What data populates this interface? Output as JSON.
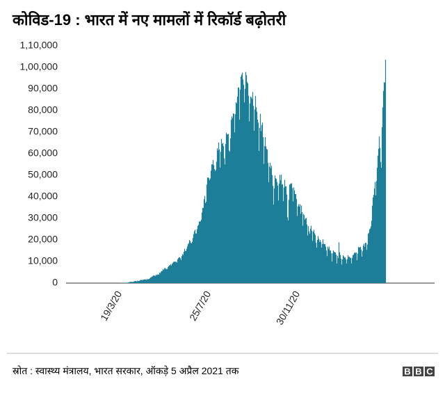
{
  "chart_data": {
    "type": "bar",
    "title": "कोविड-19 : भारत में नए मामलों में रिकॉर्ड बढ़ोतरी",
    "source": "स्रोत : स्वास्थ्य मंत्रालय, भारत सरकार, ऑकड़े 5 अप्रैल 2021 तक",
    "logo": [
      "B",
      "B",
      "C"
    ],
    "color": "#1c7e99",
    "ylim": [
      0,
      110000
    ],
    "yticks": [
      0,
      {
        "value": 10000,
        "label": "10,000"
      },
      {
        "value": 20000,
        "label": "20,000"
      },
      {
        "value": 30000,
        "label": "30,000"
      },
      {
        "value": 40000,
        "label": "40,000"
      },
      {
        "value": 50000,
        "label": "50,000"
      },
      {
        "value": 60000,
        "label": "60,000"
      },
      {
        "value": 70000,
        "label": "70,000"
      },
      {
        "value": 80000,
        "label": "80,000"
      },
      {
        "value": 90000,
        "label": "90,000"
      },
      {
        "value": 100000,
        "label": "1,00,000"
      },
      {
        "value": 110000,
        "label": "1,10,000"
      }
    ],
    "categories": [
      null,
      null,
      null,
      null,
      null,
      null,
      null,
      null,
      null,
      null,
      null,
      null,
      null,
      null,
      null,
      null,
      null,
      null,
      null,
      null,
      null,
      null,
      null,
      null,
      null,
      null,
      null,
      null,
      null,
      null,
      null,
      null,
      null,
      null,
      null,
      null,
      null,
      null,
      null,
      null,
      null,
      null,
      null,
      null,
      null,
      null,
      null,
      null,
      null,
      "19/3/20",
      null,
      null,
      null,
      null,
      null,
      null,
      null,
      null,
      null,
      null,
      null,
      null,
      null,
      null,
      null,
      null,
      null,
      null,
      null,
      null,
      null,
      null,
      null,
      null,
      null,
      null,
      null,
      null,
      null,
      null,
      null,
      null,
      null,
      null,
      null,
      null,
      null,
      null,
      null,
      null,
      null,
      null,
      null,
      null,
      null,
      null,
      null,
      null,
      null,
      null,
      null,
      null,
      null,
      null,
      null,
      null,
      null,
      null,
      null,
      null,
      null,
      null,
      null,
      null,
      null,
      null,
      null,
      null,
      null,
      null,
      null,
      null,
      null,
      null,
      null,
      null,
      null,
      null,
      null,
      null,
      null,
      null,
      null,
      null,
      null,
      null,
      null,
      null,
      null,
      null,
      null,
      null,
      null,
      null,
      null,
      null,
      null,
      null,
      null,
      null,
      null,
      null,
      null,
      null,
      null,
      null,
      null,
      null,
      null,
      null,
      null,
      null,
      null,
      null,
      null,
      null,
      null,
      null,
      null,
      null,
      null,
      null,
      null,
      null,
      null,
      null,
      null,
      "25/7/20",
      null,
      null,
      null,
      null,
      null,
      null,
      null,
      null,
      null,
      null,
      null,
      null,
      null,
      null,
      null,
      null,
      null,
      null,
      null,
      null,
      null,
      null,
      null,
      null,
      null,
      null,
      null,
      null,
      null,
      null,
      null,
      null,
      null,
      null,
      null,
      null,
      null,
      null,
      null,
      null,
      null,
      null,
      null,
      null,
      null,
      null,
      null,
      null,
      null,
      null,
      null,
      null,
      null,
      null,
      null,
      null,
      null,
      null,
      null,
      null,
      null,
      null,
      null,
      null,
      null,
      null,
      null,
      null,
      null,
      null,
      null,
      null,
      null,
      null,
      null,
      null,
      null,
      null,
      null,
      null,
      null,
      null,
      null,
      null,
      null,
      null,
      null,
      null,
      null,
      null,
      null,
      null,
      null,
      null,
      null,
      null,
      null,
      null,
      null,
      null,
      null,
      null,
      null,
      null,
      null,
      null,
      null,
      null,
      null,
      null,
      null,
      null,
      null,
      null,
      null,
      null,
      null,
      null,
      null,
      null,
      null,
      null,
      null,
      null,
      null,
      null,
      null,
      "30/11/20",
      null,
      null,
      null,
      null,
      null,
      null,
      null,
      null,
      null,
      null,
      null,
      null,
      null,
      null,
      null,
      null,
      null,
      null,
      null,
      null,
      null,
      null,
      null,
      null,
      null,
      null,
      null,
      null,
      null,
      null,
      null,
      null,
      null,
      null,
      null,
      null,
      null,
      null,
      null,
      null,
      null,
      null,
      null,
      null,
      null,
      null,
      null,
      null,
      null,
      null,
      null,
      null,
      null,
      null,
      null,
      null,
      null,
      null,
      null,
      null,
      null,
      null,
      null,
      null,
      null,
      null,
      null,
      null,
      null,
      null,
      null,
      null,
      null,
      null,
      null,
      null,
      null,
      null,
      null,
      null,
      null,
      null,
      null,
      null,
      null,
      null,
      null,
      null,
      null,
      null,
      null,
      null,
      null,
      null,
      null,
      null,
      null,
      null,
      null,
      null,
      null,
      null,
      null,
      null,
      null,
      null,
      null,
      null,
      null,
      null,
      null,
      null,
      null,
      null,
      null,
      null,
      null,
      null,
      null,
      null,
      null,
      null,
      null,
      null,
      null,
      null
    ],
    "values": [
      1,
      0,
      0,
      0,
      0,
      0,
      0,
      0,
      0,
      0,
      0,
      0,
      0,
      0,
      0,
      0,
      0,
      0,
      0,
      0,
      0,
      0,
      0,
      0,
      0,
      0,
      0,
      0,
      0,
      0,
      0,
      0,
      2,
      1,
      22,
      2,
      1,
      3,
      5,
      9,
      12,
      11,
      7,
      3,
      13,
      14,
      1,
      13,
      28,
      25,
      50,
      80,
      90,
      75,
      100,
      80,
      90,
      120,
      160,
      150,
      210,
      230,
      380,
      430,
      650,
      520,
      560,
      610,
      500,
      700,
      900,
      1000,
      900,
      800,
      1100,
      900,
      1000,
      1050,
      1300,
      1500,
      1400,
      1500,
      1300,
      1700,
      1600,
      1800,
      1600,
      1500,
      1900,
      1700,
      1800,
      1900,
      2200,
      2600,
      2700,
      3000,
      3100,
      3500,
      3600,
      3400,
      3300,
      3900,
      3600,
      4000,
      4000,
      3900,
      4900,
      4500,
      5200,
      5600,
      5700,
      6500,
      6100,
      6800,
      7100,
      6500,
      6600,
      6500,
      7300,
      7800,
      8200,
      8300,
      8800,
      8100,
      8900,
      9300,
      9800,
      9900,
      10000,
      9800,
      9900,
      9500,
      11000,
      11500,
      12000,
      11900,
      11500,
      10700,
      12500,
      13500,
      13000,
      14500,
      15900,
      15000,
      14800,
      15900,
      17000,
      18000,
      18500,
      20000,
      19500,
      18600,
      18500,
      19100,
      20900,
      22700,
      24000,
      24800,
      23000,
      23000,
      25000,
      26500,
      27000,
      28600,
      28500,
      28700,
      29400,
      32700,
      34900,
      34800,
      38900,
      40400,
      37100,
      37700,
      45700,
      48900,
      49000,
      48600,
      47700,
      48500,
      52100,
      55100,
      55000,
      57100,
      54700,
      52900,
      52000,
      52500,
      56300,
      62500,
      61500,
      65200,
      62000,
      53600,
      60900,
      66900,
      64500,
      65000,
      63500,
      57900,
      55000,
      64500,
      69700,
      69000,
      68900,
      69200,
      61400,
      60900,
      67100,
      75700,
      77300,
      76500,
      78700,
      78500,
      69900,
      78300,
      83900,
      83300,
      86400,
      90600,
      90800,
      75800,
      89700,
      95700,
      96600,
      97600,
      94400,
      92000,
      83800,
      90100,
      97900,
      96400,
      93300,
      92600,
      86900,
      75000,
      83300,
      86500,
      86100,
      85400,
      88600,
      82200,
      70600,
      80500,
      86800,
      81500,
      79500,
      75800,
      74400,
      61300,
      72000,
      78500,
      70500,
      73300,
      74400,
      67700,
      55300,
      63500,
      67700,
      63400,
      62200,
      61900,
      55700,
      46800,
      54000,
      55800,
      53300,
      54400,
      50100,
      45100,
      36400,
      43900,
      49900,
      48600,
      48300,
      46900,
      45200,
      38300,
      46200,
      50200,
      47600,
      50300,
      45700,
      45900,
      38000,
      44300,
      47900,
      44800,
      44900,
      41100,
      30500,
      29100,
      38600,
      45600,
      45900,
      46200,
      46300,
      44100,
      37900,
      44400,
      43000,
      41300,
      41300,
      39000,
      31100,
      35600,
      36600,
      35500,
      36600,
      32100,
      36000,
      32900,
      26600,
      32100,
      31500,
      29400,
      30000,
      30200,
      27100,
      22100,
      26400,
      24000,
      22900,
      25200,
      26600,
      24300,
      19600,
      23900,
      24700,
      23100,
      22300,
      18700,
      16400,
      20000,
      21800,
      20500,
      19100,
      20000,
      19000,
      16500,
      18100,
      20300,
      18200,
      18100,
      18100,
      16900,
      15100,
      12500,
      16900,
      15900,
      16900,
      15100,
      15100,
      13800,
      10000,
      13800,
      15200,
      14500,
      14300,
      14200,
      13200,
      9100,
      12700,
      11600,
      18900,
      14300,
      13000,
      11300,
      8600,
      11000,
      12900,
      12400,
      11800,
      12000,
      11000,
      9100,
      11100,
      12900,
      12100,
      12300,
      11600,
      11800,
      9100,
      11600,
      12900,
      13200,
      13900,
      14300,
      13900,
      14200,
      10600,
      13700,
      16700,
      16600,
      16500,
      16800,
      15500,
      12300,
      14900,
      17400,
      18300,
      16800,
      18700,
      18600,
      15400,
      17900,
      22800,
      23300,
      24900,
      25300,
      26300,
      28900,
      35900,
      39700,
      40900,
      43800,
      46900,
      40700,
      47300,
      53500,
      59100,
      62300,
      68000,
      62700,
      56200,
      53500,
      72300,
      81500,
      89100,
      93200,
      92900,
      103600
    ]
  }
}
